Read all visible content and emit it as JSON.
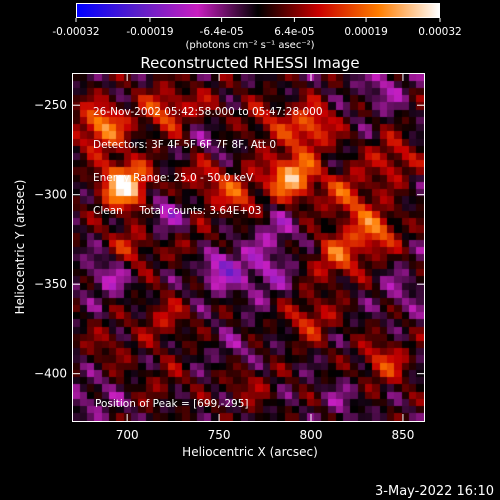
{
  "chart_data": {
    "type": "heatmap",
    "title": "Reconstructed RHESSI Image",
    "xlabel": "Heliocentric X (arcsec)",
    "ylabel": "Heliocentric Y (arcsec)",
    "xlim": [
      670,
      862
    ],
    "ylim": [
      -427,
      -232
    ],
    "x_ticks": [
      "700",
      "750",
      "800",
      "850"
    ],
    "y_ticks": [
      "-250",
      "-300",
      "-350",
      "-400"
    ],
    "colorbar": {
      "ticks": [
        "-0.00032",
        "-0.00019",
        "-6.4e-05",
        "6.4e-05",
        "0.00019",
        "0.00032"
      ],
      "unit_label": "(photons cm⁻² s⁻¹ asec⁻²)",
      "range": [
        -0.00032,
        0.00032
      ],
      "colors": [
        "#0000ff",
        "#5a1fc8",
        "#c81ec0",
        "#000000",
        "#c80000",
        "#ff7d00",
        "#ffffff"
      ]
    },
    "annotations": [
      "26-Nov-2002 05:42:58.000 to 05:47:28.000",
      "Detectors: 3F 4F 5F 6F 7F 8F, Att 0",
      "Energy Range: 25.0 - 50.0 keV",
      "Clean     Total counts: 3.64E+03"
    ],
    "peak_label": "Position of Peak = [699,-295]",
    "peak": [
      699,
      -295
    ],
    "features": [
      {
        "x": 699,
        "y": -295,
        "v": 0.00032
      },
      {
        "x": 686,
        "y": -262,
        "v": 0.00022
      },
      {
        "x": 720,
        "y": -253,
        "v": 0.00015
      },
      {
        "x": 702,
        "y": -330,
        "v": 0.00012
      },
      {
        "x": 740,
        "y": -290,
        "v": 0.0001
      },
      {
        "x": 760,
        "y": -300,
        "v": 0.00014
      },
      {
        "x": 790,
        "y": -290,
        "v": 0.00026
      },
      {
        "x": 800,
        "y": -262,
        "v": 0.00018
      },
      {
        "x": 820,
        "y": -300,
        "v": 0.00014
      },
      {
        "x": 835,
        "y": -320,
        "v": 0.00018
      },
      {
        "x": 845,
        "y": -280,
        "v": 0.00012
      },
      {
        "x": 815,
        "y": -335,
        "v": 0.00016
      },
      {
        "x": 800,
        "y": -370,
        "v": 0.00012
      },
      {
        "x": 720,
        "y": -370,
        "v": 9e-05
      },
      {
        "x": 740,
        "y": -330,
        "v": 8e-05
      },
      {
        "x": 840,
        "y": -395,
        "v": 0.00013
      },
      {
        "x": 765,
        "y": -405,
        "v": 8e-05
      },
      {
        "x": 775,
        "y": -260,
        "v": 9e-05
      },
      {
        "x": 745,
        "y": -250,
        "v": 6e-05
      },
      {
        "x": 720,
        "y": -405,
        "v": 5e-05
      },
      {
        "x": 690,
        "y": -385,
        "v": 6e-05
      },
      {
        "x": 750,
        "y": -340,
        "v": -0.00016
      },
      {
        "x": 720,
        "y": -310,
        "v": -0.0001
      },
      {
        "x": 775,
        "y": -345,
        "v": -0.0001
      },
      {
        "x": 780,
        "y": -320,
        "v": -8e-05
      },
      {
        "x": 690,
        "y": -345,
        "v": -0.0001
      },
      {
        "x": 840,
        "y": -240,
        "v": -8e-05
      },
      {
        "x": 760,
        "y": -390,
        "v": -6e-05
      },
      {
        "x": 680,
        "y": -415,
        "v": -7e-05
      },
      {
        "x": 850,
        "y": -355,
        "v": -6e-05
      },
      {
        "x": 745,
        "y": -270,
        "v": -6e-05
      },
      {
        "x": 820,
        "y": -415,
        "v": -5e-05
      }
    ]
  },
  "datestamp": "3-May-2022 16:10"
}
